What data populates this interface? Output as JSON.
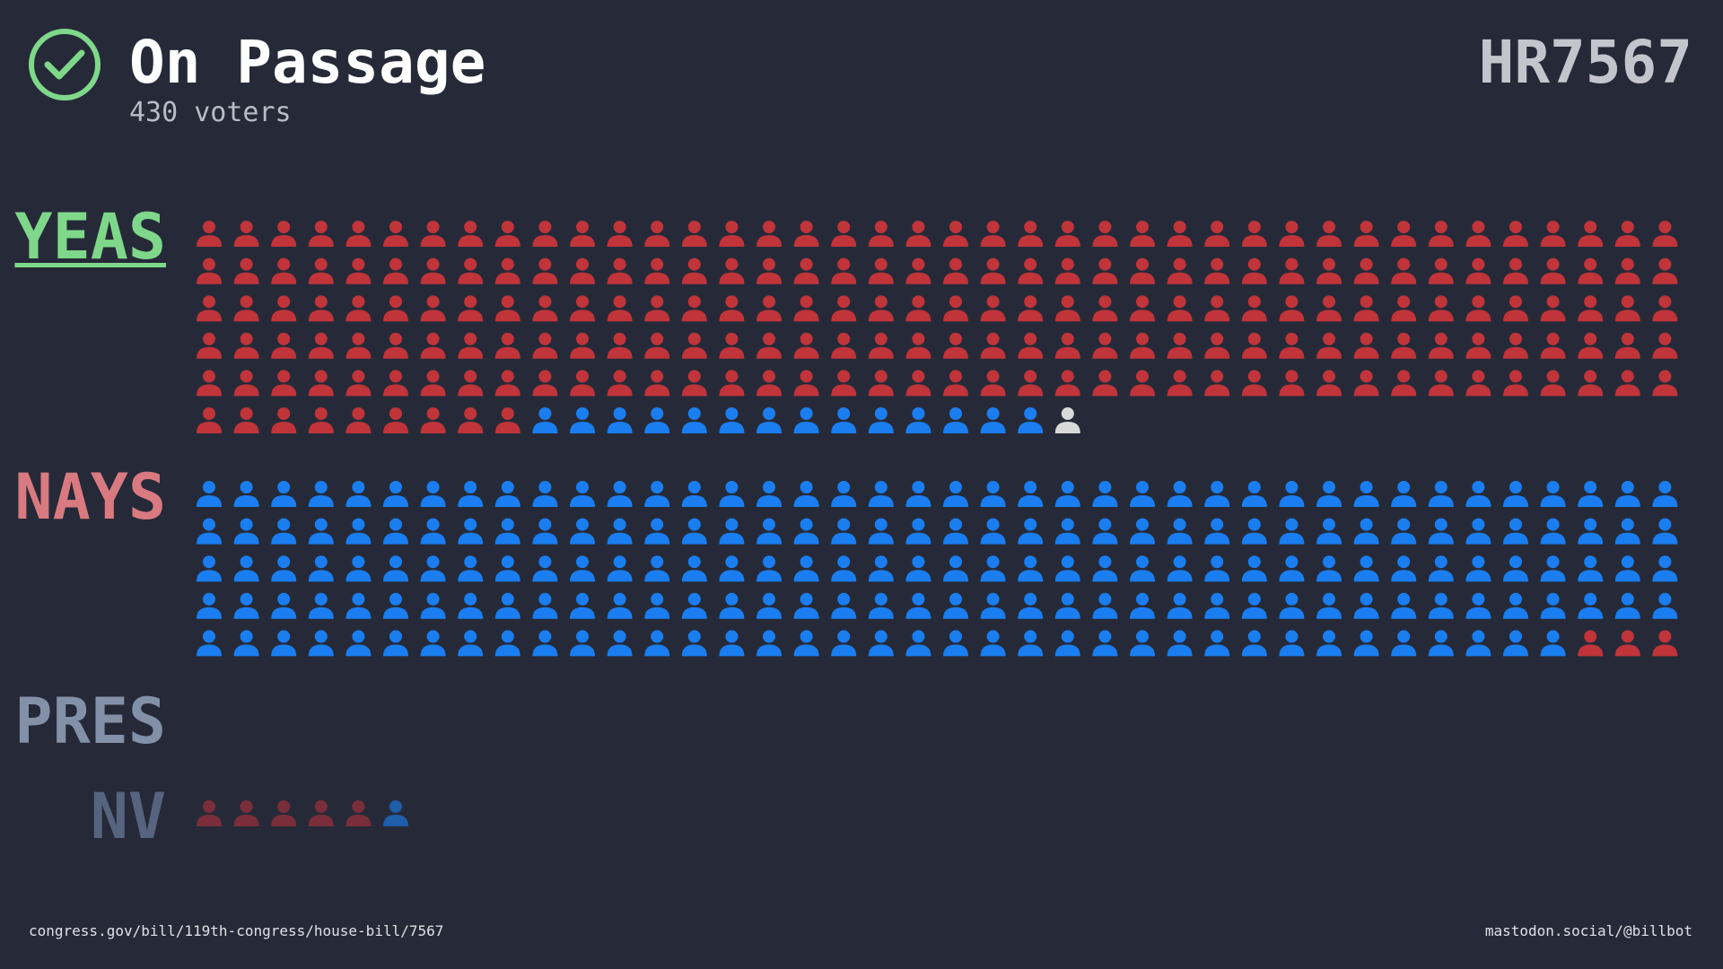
{
  "header": {
    "title": "On Passage",
    "subtitle": "430 voters",
    "bill": "HR7567"
  },
  "groups": [
    {
      "label": "YEAS",
      "label_color": "#7fd88a",
      "underline": true,
      "segments": [
        {
          "color": "#c0343a",
          "count": 209
        },
        {
          "color": "#1a7ef0",
          "count": 14
        },
        {
          "color": "#d9d9d9",
          "count": 1
        }
      ]
    },
    {
      "label": "NAYS",
      "label_color": "#d97a80",
      "underline": false,
      "segments": [
        {
          "color": "#1a7ef0",
          "count": 197
        },
        {
          "color": "#c0343a",
          "count": 3
        }
      ]
    },
    {
      "label": "PRES",
      "label_color": "#8290a8",
      "underline": false,
      "segments": []
    },
    {
      "label": "NV",
      "label_color": "#566480",
      "underline": false,
      "segments": [
        {
          "color": "#7a2e3a",
          "count": 5
        },
        {
          "color": "#1f5ea8",
          "count": 1
        }
      ]
    }
  ],
  "footer": {
    "left": "congress.gov/bill/119th-congress/house-bill/7567",
    "right": "mastodon.social/@billbot"
  }
}
